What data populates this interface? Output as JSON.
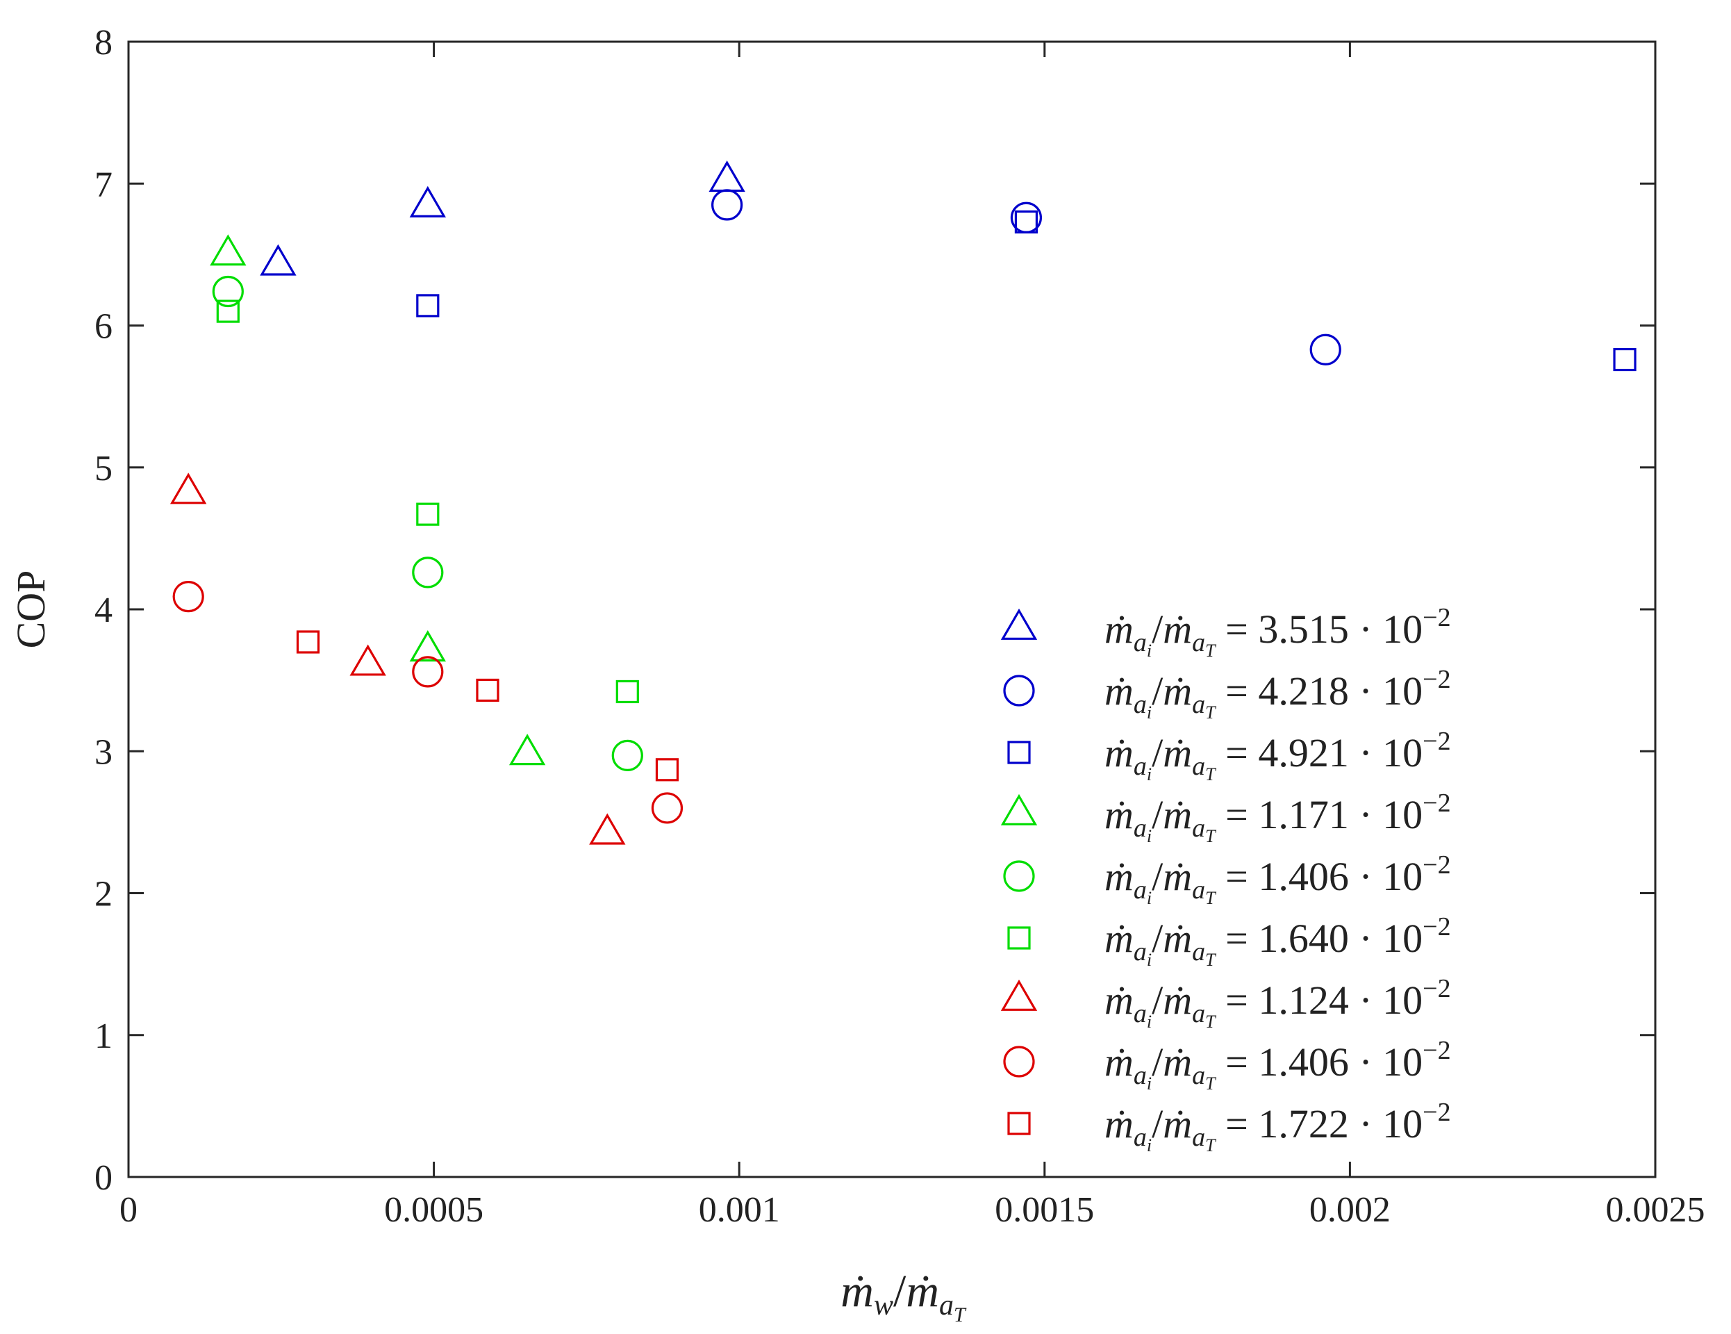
{
  "chart_data": {
    "type": "scatter",
    "title": "",
    "xlabel": {
      "numerator_base": "ṁ",
      "numerator_sub": "w",
      "slash": "/",
      "denominator_base": "ṁ",
      "denominator_sub": "a",
      "denominator_subsub": "T"
    },
    "ylabel": "COP",
    "xlim": [
      0,
      0.0025
    ],
    "ylim": [
      0,
      8
    ],
    "xticks": [
      0,
      0.0005,
      0.001,
      0.0015,
      0.002,
      0.0025
    ],
    "xtick_labels": [
      "0",
      "0.0005",
      "0.001",
      "0.0015",
      "0.002",
      "0.0025"
    ],
    "yticks": [
      0,
      1,
      2,
      3,
      4,
      5,
      6,
      7,
      8
    ],
    "ytick_labels": [
      "0",
      "1",
      "2",
      "3",
      "4",
      "5",
      "6",
      "7",
      "8"
    ],
    "grid": false,
    "legend_position": "bottom-right",
    "legend_label_parts": {
      "base": "ṁ",
      "sub_a": "a",
      "sub_i": "i",
      "sub_T": "T",
      "slash": "/",
      "equals": "=",
      "dot": "·",
      "ten": "10",
      "exp": "−2"
    },
    "series": [
      {
        "name": "3.515",
        "marker": "triangle",
        "color": "#0000cc",
        "x": [
          0.000245,
          0.00049,
          0.00098
        ],
        "y": [
          6.43,
          6.84,
          7.02
        ]
      },
      {
        "name": "4.218",
        "marker": "circle",
        "color": "#0000cc",
        "x": [
          0.00098,
          0.00147,
          0.00196
        ],
        "y": [
          6.85,
          6.76,
          5.83
        ]
      },
      {
        "name": "4.921",
        "marker": "square",
        "color": "#0000cc",
        "x": [
          0.00049,
          0.00147,
          0.00245
        ],
        "y": [
          6.14,
          6.73,
          5.76
        ]
      },
      {
        "name": "1.171",
        "marker": "triangle",
        "color": "#00dd00",
        "x": [
          0.000163,
          0.00049,
          0.000653
        ],
        "y": [
          6.5,
          3.71,
          2.98
        ]
      },
      {
        "name": "1.406",
        "marker": "circle",
        "color": "#00dd00",
        "x": [
          0.000163,
          0.00049,
          0.000817
        ],
        "y": [
          6.24,
          4.26,
          2.97
        ]
      },
      {
        "name": "1.640",
        "marker": "square",
        "color": "#00dd00",
        "x": [
          0.000163,
          0.00049,
          0.000817
        ],
        "y": [
          6.1,
          4.67,
          3.42
        ]
      },
      {
        "name": "1.124",
        "marker": "triangle",
        "color": "#dd0000",
        "x": [
          9.8e-05,
          0.000392,
          0.000784
        ],
        "y": [
          4.82,
          3.61,
          2.42
        ]
      },
      {
        "name": "1.406",
        "marker": "circle",
        "color": "#dd0000",
        "x": [
          9.8e-05,
          0.00049,
          0.000882
        ],
        "y": [
          4.09,
          3.56,
          2.6
        ]
      },
      {
        "name": "1.722",
        "marker": "square",
        "color": "#dd0000",
        "x": [
          0.000294,
          0.000588,
          0.000882
        ],
        "y": [
          3.77,
          3.43,
          2.87
        ]
      }
    ]
  }
}
